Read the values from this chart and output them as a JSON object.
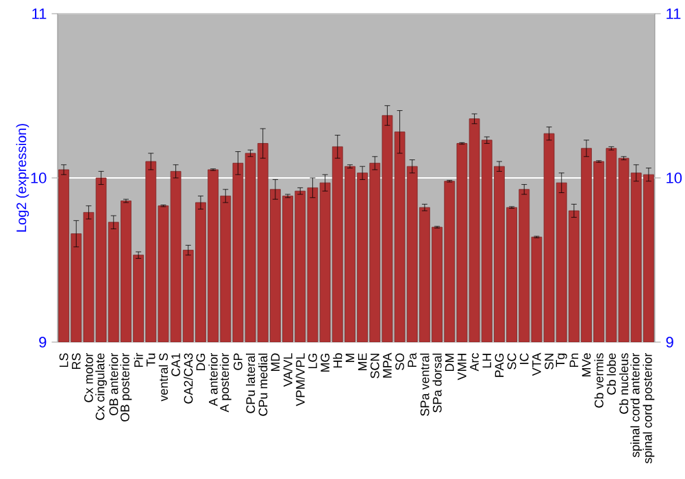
{
  "chart_data": {
    "type": "bar",
    "ylabel": "Log2 (expression)",
    "categories": [
      "LS",
      "RS",
      "Cx motor",
      "Cx cingulate",
      "OB anterior",
      "OB posterior",
      "Pir",
      "Tu",
      "ventral S",
      "CA1",
      "CA2/CA3",
      "DG",
      "A anterior",
      "A posterior",
      "GP",
      "CPu lateral",
      "CPu medial",
      "MD",
      "VA/VL",
      "VPM/VPL",
      "LG",
      "MG",
      "Hb",
      "M",
      "ME",
      "SCN",
      "MPA",
      "SO",
      "Pa",
      "SPa ventral",
      "SPa dorsal",
      "DM",
      "VMH",
      "Arc",
      "LH",
      "PAG",
      "SC",
      "IC",
      "VTA",
      "SN",
      "Tg",
      "Pn",
      "MVe",
      "Cb vermis",
      "Cb lobe",
      "Cb nucleus",
      "spinal cord anterior",
      "spinal cord posterior"
    ],
    "values": [
      10.05,
      9.66,
      9.79,
      10.0,
      9.73,
      9.86,
      9.53,
      10.1,
      9.83,
      10.04,
      9.56,
      9.85,
      10.05,
      9.89,
      10.09,
      10.15,
      10.21,
      9.93,
      9.89,
      9.92,
      9.94,
      9.97,
      10.19,
      10.07,
      10.03,
      10.09,
      10.38,
      10.28,
      10.07,
      9.82,
      9.7,
      9.98,
      10.21,
      10.36,
      10.23,
      10.07,
      9.82,
      9.93,
      9.64,
      10.27,
      9.97,
      9.8,
      10.18,
      10.1,
      10.18,
      10.12,
      10.03,
      10.02
    ],
    "errors": [
      0.03,
      0.08,
      0.04,
      0.04,
      0.04,
      0.01,
      0.02,
      0.05,
      0.005,
      0.04,
      0.03,
      0.04,
      0.005,
      0.04,
      0.07,
      0.02,
      0.09,
      0.06,
      0.01,
      0.02,
      0.06,
      0.05,
      0.07,
      0.01,
      0.04,
      0.04,
      0.06,
      0.13,
      0.04,
      0.02,
      0.005,
      0.005,
      0.005,
      0.03,
      0.02,
      0.03,
      0.005,
      0.03,
      0.005,
      0.04,
      0.06,
      0.04,
      0.05,
      0.005,
      0.01,
      0.01,
      0.05,
      0.04
    ],
    "color": "#b03232",
    "ylim": [
      9,
      11
    ],
    "yticks": [
      9,
      10,
      11
    ],
    "y2lim": [
      9,
      11
    ],
    "y2ticks": [
      9,
      10,
      11
    ],
    "grid": "y"
  }
}
